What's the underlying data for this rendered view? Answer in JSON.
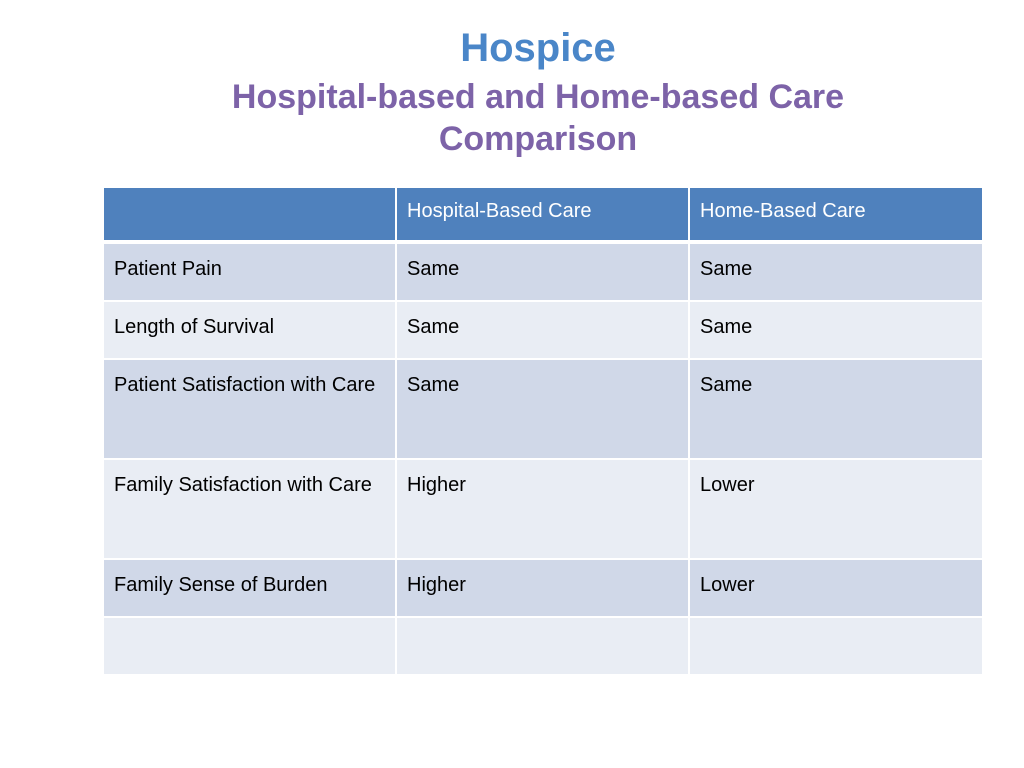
{
  "title": {
    "main": "Hospice",
    "subtitle": "Hospital-based and Home-based Care Comparison"
  },
  "colors": {
    "title_main": "#4a86c8",
    "title_sub": "#7d63a8",
    "header_bg": "#4f81bd",
    "row_band_dark": "#d0d8e8",
    "row_band_light": "#e9edf4"
  },
  "table": {
    "headers": [
      "",
      "Hospital-Based Care",
      "Home-Based Care"
    ],
    "rows": [
      [
        "Patient Pain",
        "Same",
        "Same"
      ],
      [
        "Length of Survival",
        "Same",
        "Same"
      ],
      [
        "Patient Satisfaction with Care",
        "Same",
        "Same"
      ],
      [
        "Family Satisfaction with Care",
        "Higher",
        "Lower"
      ],
      [
        "Family Sense of Burden",
        "Higher",
        "Lower"
      ],
      [
        "",
        "",
        ""
      ]
    ]
  }
}
